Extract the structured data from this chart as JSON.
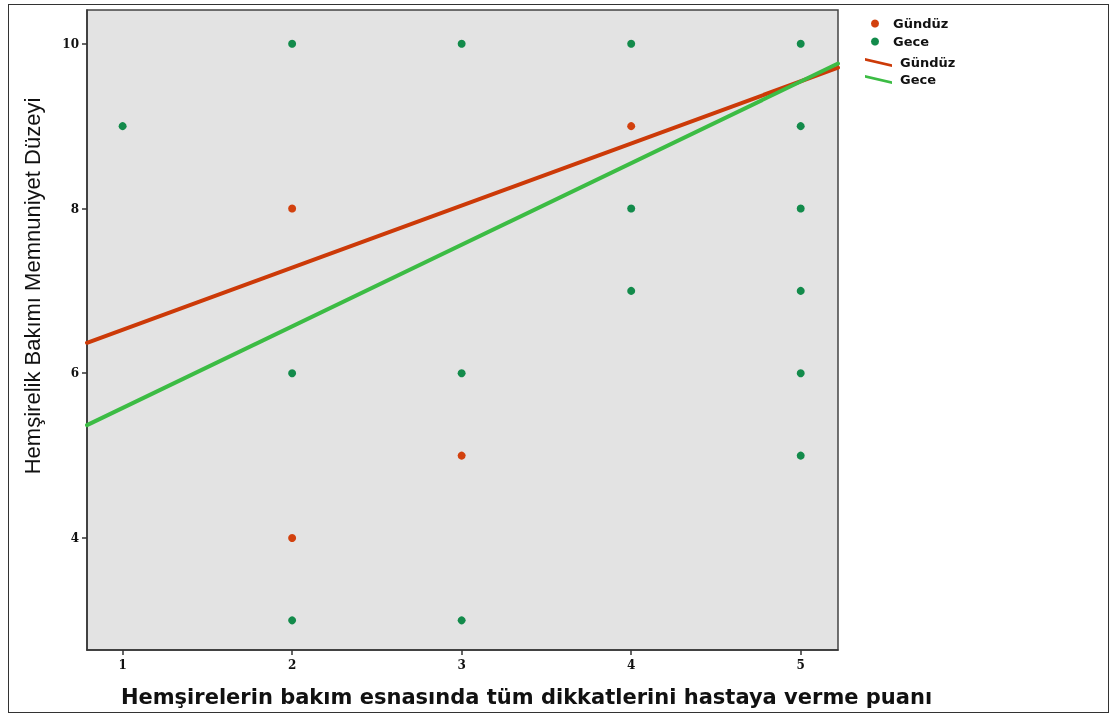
{
  "chart_data": {
    "type": "scatter",
    "xlabel": "Hemşirelerin bakım esnasında tüm dikkatlerini hastaya verme puanı",
    "ylabel": "Hemşirelik Bakımı Memnuniyet Düzeyi",
    "xlim": [
      0.79,
      5.22
    ],
    "xticks": [
      1,
      2,
      3,
      4,
      5
    ],
    "ylim": [
      2.64,
      10.41
    ],
    "yticks": [
      4,
      6,
      8,
      10
    ],
    "legend": "top right",
    "marker": "circle",
    "series": [
      {
        "name": "Gündüz",
        "color": "#d2410e",
        "x": [
          2,
          2,
          3,
          4
        ],
        "values": [
          8,
          4,
          5,
          9
        ]
      },
      {
        "name": "Gece",
        "color": "#138b4b",
        "x": [
          1,
          2,
          2,
          2,
          3,
          3,
          3,
          4,
          4,
          4,
          5,
          5,
          5,
          5,
          5,
          5
        ],
        "values": [
          9,
          10,
          6,
          3,
          10,
          6,
          3,
          10,
          8,
          7,
          10,
          9,
          8,
          7,
          6,
          5
        ]
      },
      {
        "name": "Gündüz",
        "type": "line",
        "color": "#cc3a08",
        "marker": "none",
        "x": [
          0.79,
          5.22
        ],
        "values": [
          6.37,
          9.71
        ]
      },
      {
        "name": "Gece",
        "type": "line",
        "color": "#3cbc44",
        "marker": "none",
        "x": [
          0.79,
          5.22
        ],
        "values": [
          5.37,
          9.76
        ]
      }
    ]
  }
}
